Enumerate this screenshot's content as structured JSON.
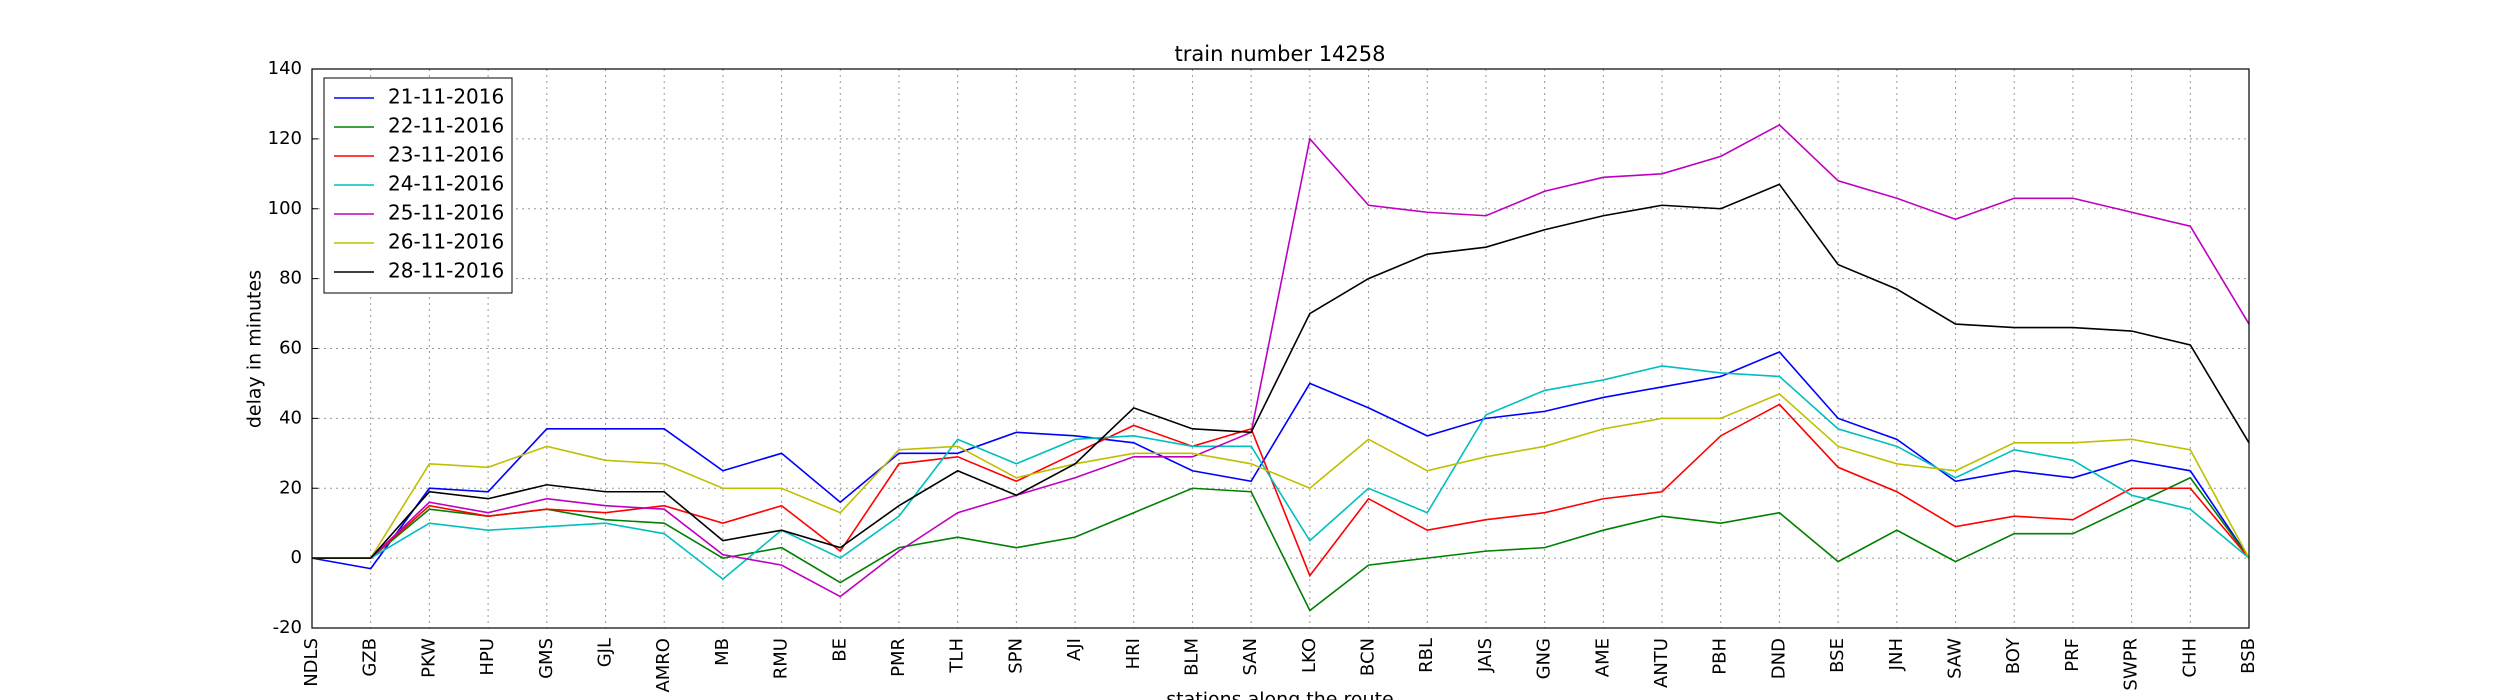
{
  "chart_data": {
    "type": "line",
    "title": "train number 14258",
    "xlabel": "stations along the route",
    "ylabel": "delay in minutes",
    "categories": [
      "NDLS",
      "GZB",
      "PKW",
      "HPU",
      "GMS",
      "GJL",
      "AMRO",
      "MB",
      "RMU",
      "BE",
      "PMR",
      "TLH",
      "SPN",
      "AJI",
      "HRI",
      "BLM",
      "SAN",
      "LKO",
      "BCN",
      "RBL",
      "JAIS",
      "GNG",
      "AME",
      "ANTU",
      "PBH",
      "DND",
      "BSE",
      "JNH",
      "SAW",
      "BOY",
      "PRF",
      "SWPR",
      "CHH",
      "BSB"
    ],
    "series": [
      {
        "name": "21-11-2016",
        "color": "#0000ff",
        "values": [
          0,
          -3,
          20,
          19,
          37,
          37,
          37,
          25,
          30,
          16,
          30,
          30,
          36,
          35,
          33,
          25,
          22,
          50,
          43,
          35,
          40,
          42,
          46,
          49,
          52,
          59,
          40,
          34,
          22,
          25,
          23,
          28,
          25,
          0
        ]
      },
      {
        "name": "22-11-2016",
        "color": "#008000",
        "values": [
          0,
          0,
          14,
          12,
          14,
          11,
          10,
          0,
          3,
          -7,
          3,
          6,
          3,
          6,
          13,
          20,
          19,
          -15,
          -2,
          0,
          2,
          3,
          8,
          12,
          10,
          13,
          -1,
          8,
          -1,
          7,
          7,
          15,
          23,
          0
        ]
      },
      {
        "name": "23-11-2016",
        "color": "#ff0000",
        "values": [
          0,
          0,
          15,
          12,
          14,
          13,
          15,
          10,
          15,
          2,
          27,
          29,
          22,
          30,
          38,
          32,
          37,
          -5,
          17,
          8,
          11,
          13,
          17,
          19,
          35,
          44,
          26,
          19,
          9,
          12,
          11,
          20,
          20,
          0
        ]
      },
      {
        "name": "24-11-2016",
        "color": "#00bfbf",
        "values": [
          0,
          0,
          10,
          8,
          9,
          10,
          7,
          -6,
          8,
          0,
          12,
          34,
          27,
          34,
          35,
          32,
          32,
          5,
          20,
          13,
          41,
          48,
          51,
          55,
          53,
          52,
          37,
          32,
          23,
          31,
          28,
          18,
          14,
          0
        ]
      },
      {
        "name": "25-11-2016",
        "color": "#bf00bf",
        "values": [
          0,
          0,
          16,
          13,
          17,
          15,
          14,
          1,
          -2,
          -11,
          2,
          13,
          18,
          23,
          29,
          29,
          36,
          120,
          101,
          99,
          98,
          105,
          109,
          110,
          115,
          124,
          108,
          103,
          97,
          103,
          103,
          99,
          95,
          67
        ]
      },
      {
        "name": "26-11-2016",
        "color": "#bfbf00",
        "values": [
          0,
          0,
          27,
          26,
          32,
          28,
          27,
          20,
          20,
          13,
          31,
          32,
          23,
          27,
          30,
          30,
          27,
          20,
          34,
          25,
          29,
          32,
          37,
          40,
          40,
          47,
          32,
          27,
          25,
          33,
          33,
          34,
          31,
          0
        ]
      },
      {
        "name": "28-11-2016",
        "color": "#000000",
        "values": [
          0,
          0,
          19,
          17,
          21,
          19,
          19,
          5,
          8,
          3,
          15,
          25,
          18,
          27,
          43,
          37,
          36,
          70,
          80,
          87,
          89,
          94,
          98,
          101,
          100,
          107,
          84,
          77,
          67,
          66,
          66,
          65,
          61,
          33
        ]
      }
    ],
    "ylim": [
      -20,
      140
    ],
    "yticks": [
      -20,
      0,
      20,
      40,
      60,
      80,
      100,
      120,
      140
    ],
    "grid": true,
    "legend": "upper left"
  }
}
